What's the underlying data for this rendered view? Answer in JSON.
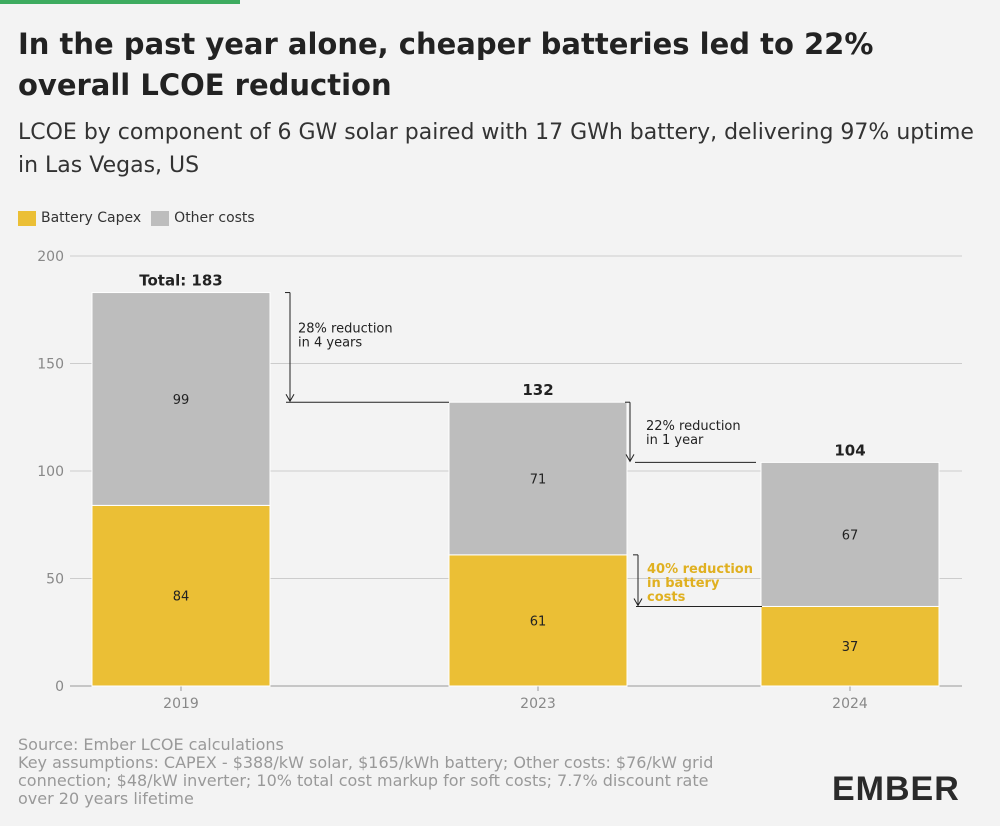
{
  "title": "In the past year alone, cheaper batteries led to 22% overall LCOE reduction",
  "subtitle": "LCOE by component of 6 GW solar paired with 17 GWh battery, delivering 97% uptime in Las Vegas, US",
  "colors": {
    "battery": "#ebbf35",
    "other": "#bdbdbd",
    "accent_text": "#e0b020",
    "grid": "#cccccc"
  },
  "chart_data": {
    "type": "bar",
    "stacked": true,
    "categories": [
      "2019",
      "2023",
      "2024"
    ],
    "series": [
      {
        "name": "Battery Capex",
        "values": [
          84,
          61,
          37
        ]
      },
      {
        "name": "Other costs",
        "values": [
          99,
          71,
          67
        ]
      }
    ],
    "totals": [
      "Total: 183",
      "132",
      "104"
    ],
    "ylim": [
      0,
      200
    ],
    "yticks": [
      0,
      50,
      100,
      150,
      200
    ],
    "grid": true,
    "legend_position": "top-left",
    "annotations": [
      {
        "lines": [
          "28% reduction",
          "in 4 years"
        ],
        "from": 183,
        "to": 132,
        "highlight": false
      },
      {
        "lines": [
          "22% reduction",
          "in 1 year"
        ],
        "from": 132,
        "to": 104,
        "highlight": false
      },
      {
        "lines": [
          "40% reduction",
          "in battery",
          "costs"
        ],
        "from": 61,
        "to": 37,
        "highlight": true
      }
    ]
  },
  "footer": {
    "source": "Source: Ember LCOE calculations",
    "assumptions": [
      "Key assumptions: CAPEX - $388/kW solar, $165/kWh battery; Other costs: $76/kW grid",
      "connection; $48/kW inverter; 10% total cost markup for soft costs; 7.7% discount rate",
      "over 20 years lifetime"
    ]
  },
  "logo": "EMBER"
}
